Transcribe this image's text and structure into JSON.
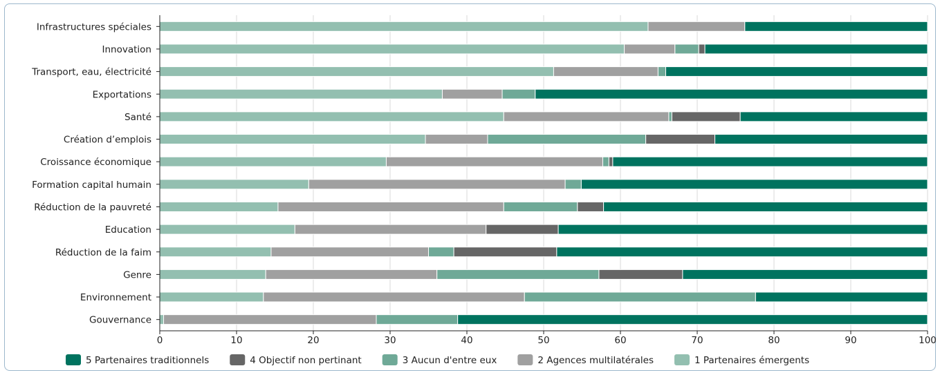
{
  "chart_data": {
    "type": "bar",
    "orientation": "horizontal",
    "stacked": true,
    "categories": [
      "Infrastructures spéciales",
      "Innovation",
      "Transport, eau, électricité",
      "Exportations",
      "Santé",
      "Création d’emplois",
      "Croissance économique",
      "Formation capital humain",
      "Réduction de la pauvreté",
      "Education",
      "Réduction de la faim",
      "Genre",
      "Environnement",
      "Gouvernance"
    ],
    "series": [
      {
        "name": "1 Partenaires émergents",
        "color": "#93bfb0",
        "values": [
          63.6,
          60.5,
          51.3,
          36.8,
          44.8,
          34.6,
          29.5,
          19.4,
          15.4,
          17.6,
          14.5,
          13.8,
          13.5,
          0.5
        ]
      },
      {
        "name": "2 Agences multilatérales",
        "color": "#a0a0a0",
        "values": [
          12.6,
          6.6,
          13.6,
          7.8,
          21.5,
          8.1,
          28.2,
          33.4,
          29.4,
          24.9,
          20.5,
          22.3,
          34.0,
          27.7
        ]
      },
      {
        "name": "3 Aucun d'entre eux",
        "color": "#6fa997",
        "values": [
          0.0,
          3.1,
          1.0,
          4.3,
          0.4,
          20.6,
          0.8,
          2.1,
          9.6,
          0.0,
          3.3,
          21.1,
          30.1,
          10.6
        ]
      },
      {
        "name": "4 Objectif non pertinant",
        "color": "#666666",
        "values": [
          0.0,
          0.8,
          0.0,
          0.0,
          8.9,
          9.0,
          0.5,
          0.0,
          3.4,
          9.4,
          13.4,
          10.9,
          0.0,
          0.0
        ]
      },
      {
        "name": "5 Partenaires traditionnels",
        "color": "#00735f",
        "values": [
          23.8,
          29.0,
          34.1,
          51.1,
          24.4,
          27.7,
          41.0,
          45.1,
          42.2,
          48.1,
          48.3,
          31.9,
          22.4,
          61.2
        ]
      }
    ],
    "xlim": [
      0,
      100
    ],
    "xticks": [
      "0",
      "10",
      "20",
      "30",
      "40",
      "50",
      "60",
      "70",
      "80",
      "90",
      "100"
    ],
    "legend_order": [
      4,
      3,
      2,
      1,
      0
    ],
    "legend_position": "bottom",
    "grid": true
  }
}
